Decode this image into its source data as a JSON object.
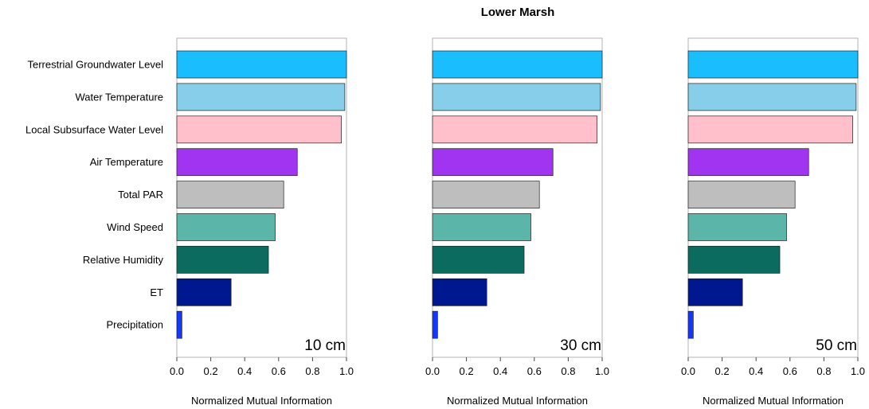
{
  "chart_data": {
    "type": "bar",
    "orientation": "horizontal",
    "title": "Lower Marsh",
    "xlabel": "Normalized Mutual Information",
    "xlim": [
      0,
      1
    ],
    "xticks": [
      "0.0",
      "0.2",
      "0.4",
      "0.6",
      "0.8",
      "1.0"
    ],
    "categories": [
      "Terrestrial Groundwater Level",
      "Water Temperature",
      "Local Subsurface Water Level",
      "Air Temperature",
      "Total PAR",
      "Wind Speed",
      "Relative Humidity",
      "ET",
      "Precipitation"
    ],
    "colors": [
      "#1ABEFF",
      "#87CEEB",
      "#FFC0CB",
      "#A034F0",
      "#BEBEBE",
      "#5BB5A9",
      "#0B6B5E",
      "#00188F",
      "#1437FF"
    ],
    "panels": [
      {
        "label": "10 cm",
        "values": [
          1.0,
          0.99,
          0.97,
          0.71,
          0.63,
          0.58,
          0.54,
          0.32,
          0.03
        ]
      },
      {
        "label": "30 cm",
        "values": [
          1.0,
          0.99,
          0.97,
          0.71,
          0.63,
          0.58,
          0.54,
          0.32,
          0.03
        ]
      },
      {
        "label": "50 cm",
        "values": [
          1.0,
          0.99,
          0.97,
          0.71,
          0.63,
          0.58,
          0.54,
          0.32,
          0.03
        ]
      }
    ],
    "grid": false,
    "legend": "none"
  }
}
